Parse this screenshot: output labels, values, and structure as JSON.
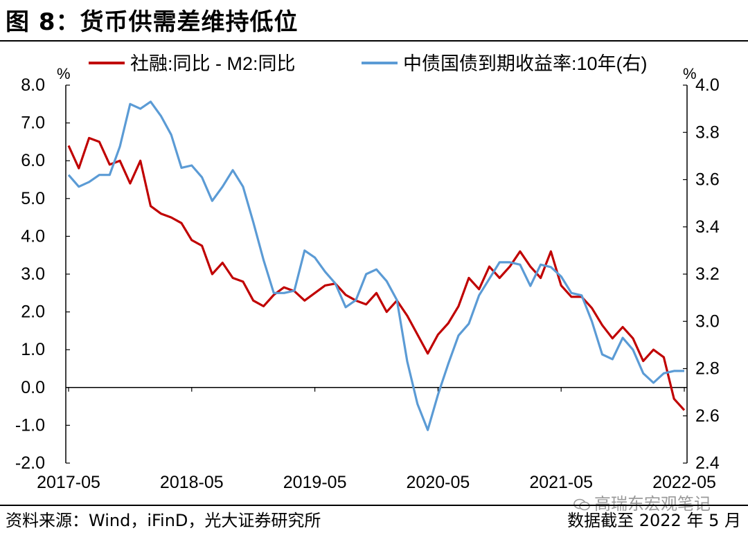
{
  "figure": {
    "title": "图 8：货币供需差维持低位",
    "source": "资料来源：Wind，iFinD，光大证券研究所",
    "date_note": "数据截至 2022 年 5 月",
    "watermark": "高瑞东宏观笔记"
  },
  "colors": {
    "series1": "#C00000",
    "series2": "#5B9BD5"
  },
  "chart_data": {
    "type": "line",
    "left_axis": {
      "unit": "%",
      "ylim": [
        -2.0,
        8.0
      ],
      "ticks": [
        "8.0",
        "7.0",
        "6.0",
        "5.0",
        "4.0",
        "3.0",
        "2.0",
        "1.0",
        "0.0",
        "-1.0",
        "-2.0"
      ]
    },
    "right_axis": {
      "unit": "%",
      "ylim": [
        2.4,
        4.0
      ],
      "ticks": [
        "4.0",
        "3.8",
        "3.6",
        "3.4",
        "3.2",
        "3.0",
        "2.8",
        "2.6",
        "2.4"
      ]
    },
    "x_tick_labels": [
      "2017-05",
      "2018-05",
      "2019-05",
      "2020-05",
      "2021-05",
      "2022-05"
    ],
    "x": [
      "2017-05",
      "2017-06",
      "2017-07",
      "2017-08",
      "2017-09",
      "2017-10",
      "2017-11",
      "2017-12",
      "2018-01",
      "2018-02",
      "2018-03",
      "2018-04",
      "2018-05",
      "2018-06",
      "2018-07",
      "2018-08",
      "2018-09",
      "2018-10",
      "2018-11",
      "2018-12",
      "2019-01",
      "2019-02",
      "2019-03",
      "2019-04",
      "2019-05",
      "2019-06",
      "2019-07",
      "2019-08",
      "2019-09",
      "2019-10",
      "2019-11",
      "2019-12",
      "2020-01",
      "2020-02",
      "2020-03",
      "2020-04",
      "2020-05",
      "2020-06",
      "2020-07",
      "2020-08",
      "2020-09",
      "2020-10",
      "2020-11",
      "2020-12",
      "2021-01",
      "2021-02",
      "2021-03",
      "2021-04",
      "2021-05",
      "2021-06",
      "2021-07",
      "2021-08",
      "2021-09",
      "2021-10",
      "2021-11",
      "2021-12",
      "2022-01",
      "2022-02",
      "2022-03",
      "2022-04",
      "2022-05"
    ],
    "series": [
      {
        "name": "社融:同比 - M2:同比",
        "axis": "left",
        "values": [
          6.4,
          5.8,
          6.6,
          6.5,
          5.9,
          6.0,
          5.4,
          6.0,
          4.8,
          4.6,
          4.5,
          4.35,
          3.9,
          3.75,
          3.0,
          3.3,
          2.9,
          2.8,
          2.3,
          2.15,
          2.45,
          2.65,
          2.55,
          2.3,
          2.5,
          2.7,
          2.75,
          2.45,
          2.3,
          2.2,
          2.5,
          2.0,
          2.3,
          1.9,
          1.4,
          0.9,
          1.4,
          1.7,
          2.15,
          2.9,
          2.6,
          3.2,
          2.9,
          3.2,
          3.6,
          3.2,
          2.9,
          3.6,
          2.7,
          2.4,
          2.4,
          2.1,
          1.65,
          1.3,
          1.6,
          1.3,
          0.7,
          1.0,
          0.8,
          -0.3,
          -0.6
        ]
      },
      {
        "name": "中债国债到期收益率:10年(右)",
        "axis": "right",
        "values": [
          3.62,
          3.57,
          3.59,
          3.62,
          3.62,
          3.74,
          3.92,
          3.9,
          3.93,
          3.87,
          3.79,
          3.65,
          3.66,
          3.61,
          3.51,
          3.57,
          3.64,
          3.57,
          3.42,
          3.26,
          3.12,
          3.12,
          3.13,
          3.3,
          3.27,
          3.21,
          3.16,
          3.06,
          3.09,
          3.2,
          3.22,
          3.17,
          3.09,
          2.83,
          2.65,
          2.54,
          2.69,
          2.82,
          2.94,
          2.99,
          3.11,
          3.18,
          3.25,
          3.25,
          3.24,
          3.15,
          3.24,
          3.23,
          3.19,
          3.12,
          3.11,
          3.0,
          2.86,
          2.84,
          2.93,
          2.88,
          2.78,
          2.74,
          2.78,
          2.79,
          2.79
        ]
      }
    ]
  }
}
